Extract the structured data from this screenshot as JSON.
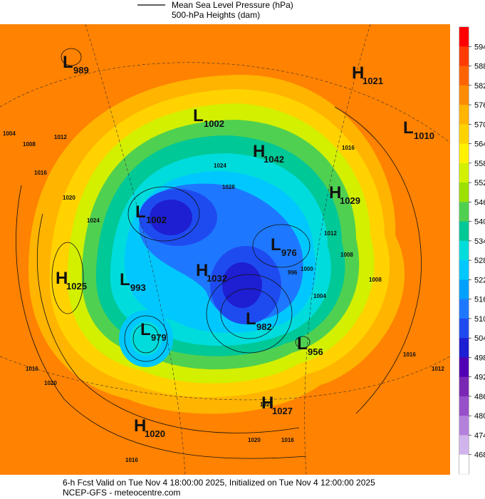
{
  "header": {
    "line_legend": "Mean Sea Level Pressure (hPa)",
    "fill_legend": "500-hPa Heights (dam)"
  },
  "colorbar": {
    "ticks": [
      594,
      588,
      582,
      576,
      570,
      564,
      558,
      552,
      546,
      540,
      534,
      528,
      522,
      516,
      510,
      504,
      498,
      492,
      486,
      480,
      474,
      468
    ],
    "colors": [
      "#ff0000",
      "#ff3c00",
      "#ff6400",
      "#ff8c00",
      "#ffb400",
      "#ffd200",
      "#fff000",
      "#d2f000",
      "#9be000",
      "#50d050",
      "#00c896",
      "#00dcdc",
      "#00c8ff",
      "#00a0ff",
      "#1e78ff",
      "#1e4bf0",
      "#1e1ed2",
      "#5000b4",
      "#7828b4",
      "#9650c8",
      "#b482dc",
      "#d2b4ec",
      "#ffffff"
    ]
  },
  "centers": [
    {
      "kind": "L",
      "value": 989
    },
    {
      "kind": "H",
      "value": 1021
    },
    {
      "kind": "L",
      "value": 1002
    },
    {
      "kind": "L",
      "value": 1010
    },
    {
      "kind": "H",
      "value": 1042
    },
    {
      "kind": "H",
      "value": 1029
    },
    {
      "kind": "L",
      "value": 1002
    },
    {
      "kind": "L",
      "value": 976
    },
    {
      "kind": "H",
      "value": 1025
    },
    {
      "kind": "L",
      "value": 993
    },
    {
      "kind": "H",
      "value": 1032
    },
    {
      "kind": "L",
      "value": 982
    },
    {
      "kind": "L",
      "value": 979
    },
    {
      "kind": "L",
      "value": 956
    },
    {
      "kind": "H",
      "value": 1027
    },
    {
      "kind": "H",
      "value": 1020
    }
  ],
  "isobar_labels": [
    1004,
    1008,
    1012,
    1016,
    1020,
    1024,
    1016,
    1012,
    1008,
    1000,
    996,
    1004,
    1008,
    1016,
    1016,
    1020,
    1024,
    1016,
    1020,
    1016,
    1012,
    1024,
    1028
  ],
  "footer": {
    "valid": "6-h Fcst Valid on Tue Nov  4 18:00:00 2025, Initialized on Tue Nov  4 12:00:00 2025",
    "source": "NCEP-GFS - meteocentre.com"
  }
}
